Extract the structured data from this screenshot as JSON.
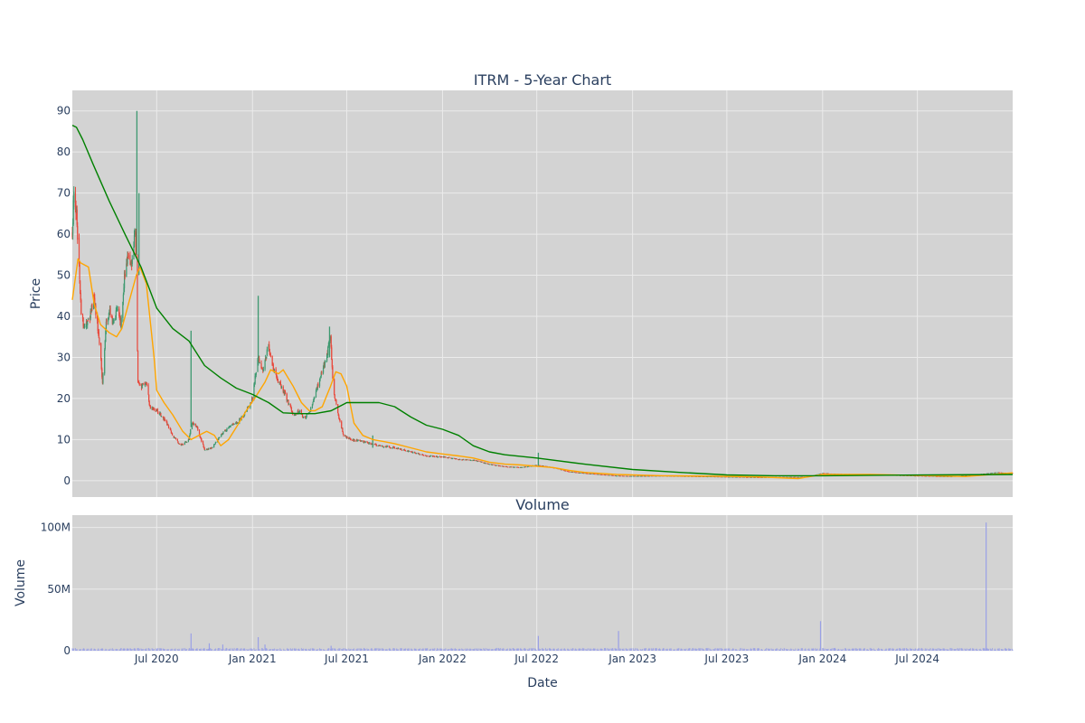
{
  "chart_data": [
    {
      "type": "candlestick",
      "title": "ITRM - 5-Year Chart",
      "ylabel": "Price",
      "ylim": [
        -4,
        95
      ],
      "yticks": [
        0,
        10,
        20,
        30,
        40,
        50,
        60,
        70,
        80,
        90
      ],
      "xlim": [
        "2020-01-21",
        "2024-12-31"
      ],
      "xticks": [
        {
          "date": "2020-07-01",
          "label": "Jul 2020"
        },
        {
          "date": "2021-01-01",
          "label": "Jan 2021"
        },
        {
          "date": "2021-07-01",
          "label": "Jul 2021"
        },
        {
          "date": "2022-01-01",
          "label": "Jan 2022"
        },
        {
          "date": "2022-07-01",
          "label": "Jul 2022"
        },
        {
          "date": "2023-01-01",
          "label": "Jan 2023"
        },
        {
          "date": "2023-07-01",
          "label": "Jul 2023"
        },
        {
          "date": "2024-01-01",
          "label": "Jan 2024"
        },
        {
          "date": "2024-07-01",
          "label": "Jul 2024"
        }
      ],
      "grid": true,
      "colors": {
        "up": "#3d9970",
        "down": "#e8473a",
        "ma_short": "#ffa500",
        "ma_long": "#008000",
        "plot_bg": "#d3d3d3",
        "grid": "#ebebeb"
      },
      "price_path": [
        [
          "2020-01-21",
          60
        ],
        [
          "2020-01-24",
          72
        ],
        [
          "2020-01-29",
          65
        ],
        [
          "2020-02-03",
          52
        ],
        [
          "2020-02-07",
          40
        ],
        [
          "2020-02-14",
          37
        ],
        [
          "2020-02-24",
          40
        ],
        [
          "2020-03-02",
          45
        ],
        [
          "2020-03-07",
          40
        ],
        [
          "2020-03-14",
          33
        ],
        [
          "2020-03-19",
          24
        ],
        [
          "2020-03-26",
          38
        ],
        [
          "2020-04-02",
          41
        ],
        [
          "2020-04-09",
          38
        ],
        [
          "2020-04-16",
          42
        ],
        [
          "2020-04-23",
          37
        ],
        [
          "2020-04-30",
          50
        ],
        [
          "2020-05-07",
          55
        ],
        [
          "2020-05-14",
          52
        ],
        [
          "2020-05-21",
          62
        ],
        [
          "2020-05-26",
          24
        ],
        [
          "2020-06-02",
          23
        ],
        [
          "2020-06-11",
          24
        ],
        [
          "2020-06-18",
          18
        ],
        [
          "2020-07-02",
          17
        ],
        [
          "2020-07-16",
          15
        ],
        [
          "2020-08-01",
          11
        ],
        [
          "2020-08-16",
          8.5
        ],
        [
          "2020-09-01",
          10
        ],
        [
          "2020-09-06",
          14
        ],
        [
          "2020-09-16",
          13
        ],
        [
          "2020-10-01",
          7.5
        ],
        [
          "2020-10-16",
          8
        ],
        [
          "2020-10-31",
          11
        ],
        [
          "2020-11-16",
          13
        ],
        [
          "2020-12-01",
          14
        ],
        [
          "2020-12-16",
          16
        ],
        [
          "2021-01-01",
          20
        ],
        [
          "2021-01-11",
          30
        ],
        [
          "2021-01-21",
          27
        ],
        [
          "2021-02-01",
          33
        ],
        [
          "2021-02-08",
          28
        ],
        [
          "2021-02-20",
          24
        ],
        [
          "2021-03-01",
          22
        ],
        [
          "2021-03-11",
          19
        ],
        [
          "2021-03-21",
          16
        ],
        [
          "2021-04-01",
          17
        ],
        [
          "2021-04-11",
          15
        ],
        [
          "2021-04-21",
          17
        ],
        [
          "2021-05-01",
          21
        ],
        [
          "2021-05-11",
          25
        ],
        [
          "2021-05-21",
          29
        ],
        [
          "2021-05-31",
          35
        ],
        [
          "2021-06-05",
          22
        ],
        [
          "2021-06-15",
          16
        ],
        [
          "2021-06-25",
          11
        ],
        [
          "2021-07-10",
          10
        ],
        [
          "2021-08-01",
          9.5
        ],
        [
          "2021-09-01",
          8.5
        ],
        [
          "2021-10-01",
          8
        ],
        [
          "2021-11-01",
          7
        ],
        [
          "2021-12-01",
          6
        ],
        [
          "2022-01-01",
          5.8
        ],
        [
          "2022-02-01",
          5.2
        ],
        [
          "2022-03-01",
          5
        ],
        [
          "2022-04-01",
          4
        ],
        [
          "2022-05-01",
          3.4
        ],
        [
          "2022-06-01",
          3.2
        ],
        [
          "2022-07-01",
          3.8
        ],
        [
          "2022-08-01",
          3.2
        ],
        [
          "2022-09-01",
          2.2
        ],
        [
          "2022-10-01",
          1.8
        ],
        [
          "2022-11-01",
          1.5
        ],
        [
          "2022-12-01",
          1.2
        ],
        [
          "2023-01-01",
          1.1
        ],
        [
          "2023-03-01",
          1.2
        ],
        [
          "2023-06-01",
          1.0
        ],
        [
          "2023-09-01",
          0.8
        ],
        [
          "2023-12-01",
          0.9
        ],
        [
          "2024-01-01",
          1.8
        ],
        [
          "2024-02-01",
          1.6
        ],
        [
          "2024-04-01",
          1.5
        ],
        [
          "2024-06-01",
          1.3
        ],
        [
          "2024-09-01",
          1.0
        ],
        [
          "2024-11-01",
          1.6
        ],
        [
          "2024-12-01",
          2.0
        ],
        [
          "2024-12-31",
          1.8
        ]
      ],
      "spikes": [
        {
          "date": "2020-05-24",
          "high": 90,
          "low": 55
        },
        {
          "date": "2020-05-28",
          "high": 70,
          "low": 50
        },
        {
          "date": "2020-09-05",
          "high": 36.5,
          "low": 13
        },
        {
          "date": "2021-01-12",
          "high": 45,
          "low": 28
        },
        {
          "date": "2021-05-29",
          "high": 37.5,
          "low": 30
        },
        {
          "date": "2021-08-20",
          "high": 11,
          "low": 8
        },
        {
          "date": "2022-07-04",
          "high": 6.8,
          "low": 3.5
        }
      ],
      "series": [
        {
          "name": "",
          "kind": "ma_short",
          "points": [
            [
              "2020-01-21",
              44
            ],
            [
              "2020-02-01",
              54
            ],
            [
              "2020-02-06",
              53
            ],
            [
              "2020-02-21",
              52
            ],
            [
              "2020-03-03",
              43
            ],
            [
              "2020-03-15",
              38
            ],
            [
              "2020-04-01",
              36
            ],
            [
              "2020-04-15",
              35
            ],
            [
              "2020-04-25",
              37
            ],
            [
              "2020-05-10",
              44
            ],
            [
              "2020-05-23",
              50
            ],
            [
              "2020-05-30",
              52
            ],
            [
              "2020-06-11",
              48
            ],
            [
              "2020-06-26",
              30
            ],
            [
              "2020-07-01",
              22
            ],
            [
              "2020-07-15",
              19
            ],
            [
              "2020-08-01",
              16
            ],
            [
              "2020-08-20",
              12
            ],
            [
              "2020-09-05",
              10
            ],
            [
              "2020-09-20",
              11
            ],
            [
              "2020-10-05",
              12
            ],
            [
              "2020-10-20",
              11
            ],
            [
              "2020-11-01",
              8.5
            ],
            [
              "2020-11-16",
              10
            ],
            [
              "2020-12-01",
              13
            ],
            [
              "2020-12-20",
              17
            ],
            [
              "2021-01-05",
              20
            ],
            [
              "2021-01-25",
              24
            ],
            [
              "2021-02-05",
              27
            ],
            [
              "2021-02-20",
              26
            ],
            [
              "2021-03-01",
              27
            ],
            [
              "2021-03-20",
              23
            ],
            [
              "2021-04-05",
              19
            ],
            [
              "2021-04-20",
              17
            ],
            [
              "2021-05-01",
              17
            ],
            [
              "2021-05-15",
              18
            ],
            [
              "2021-05-31",
              23
            ],
            [
              "2021-06-10",
              26.5
            ],
            [
              "2021-06-20",
              26
            ],
            [
              "2021-07-01",
              23
            ],
            [
              "2021-07-15",
              14
            ],
            [
              "2021-08-01",
              11
            ],
            [
              "2021-08-20",
              10
            ],
            [
              "2021-09-10",
              9.5
            ],
            [
              "2021-10-01",
              9
            ],
            [
              "2021-11-01",
              8
            ],
            [
              "2021-12-01",
              7
            ],
            [
              "2022-01-01",
              6.5
            ],
            [
              "2022-02-01",
              6
            ],
            [
              "2022-03-01",
              5.5
            ],
            [
              "2022-04-01",
              4.5
            ],
            [
              "2022-05-01",
              4
            ],
            [
              "2022-06-01",
              3.8
            ],
            [
              "2022-07-01",
              3.5
            ],
            [
              "2022-08-01",
              3.2
            ],
            [
              "2022-09-01",
              2.5
            ],
            [
              "2022-10-01",
              2
            ],
            [
              "2022-12-01",
              1.5
            ],
            [
              "2023-03-01",
              1.2
            ],
            [
              "2023-06-01",
              1.1
            ],
            [
              "2023-09-01",
              0.9
            ],
            [
              "2023-11-15",
              0.5
            ],
            [
              "2024-01-01",
              1.5
            ],
            [
              "2024-04-01",
              1.5
            ],
            [
              "2024-08-01",
              1.2
            ],
            [
              "2024-10-01",
              1.0
            ],
            [
              "2024-12-31",
              1.9
            ]
          ]
        },
        {
          "name": "",
          "kind": "ma_long",
          "points": [
            [
              "2020-01-21",
              86.5
            ],
            [
              "2020-01-29",
              86
            ],
            [
              "2020-02-10",
              83
            ],
            [
              "2020-03-01",
              77
            ],
            [
              "2020-04-01",
              68
            ],
            [
              "2020-05-01",
              60
            ],
            [
              "2020-06-01",
              52
            ],
            [
              "2020-07-01",
              42
            ],
            [
              "2020-08-01",
              37
            ],
            [
              "2020-09-01",
              34
            ],
            [
              "2020-10-01",
              28
            ],
            [
              "2020-11-01",
              25
            ],
            [
              "2020-12-01",
              22.5
            ],
            [
              "2021-01-01",
              21
            ],
            [
              "2021-02-01",
              19
            ],
            [
              "2021-03-01",
              16.5
            ],
            [
              "2021-04-01",
              16.3
            ],
            [
              "2021-05-01",
              16.3
            ],
            [
              "2021-06-01",
              17
            ],
            [
              "2021-07-01",
              19
            ],
            [
              "2021-08-01",
              19
            ],
            [
              "2021-09-01",
              19
            ],
            [
              "2021-10-01",
              18
            ],
            [
              "2021-11-01",
              15.5
            ],
            [
              "2021-12-01",
              13.5
            ],
            [
              "2022-01-01",
              12.5
            ],
            [
              "2022-02-01",
              11
            ],
            [
              "2022-03-01",
              8.5
            ],
            [
              "2022-04-01",
              7
            ],
            [
              "2022-05-01",
              6.3
            ],
            [
              "2022-07-01",
              5.5
            ],
            [
              "2022-10-01",
              4
            ],
            [
              "2023-01-01",
              2.7
            ],
            [
              "2023-04-01",
              2
            ],
            [
              "2023-07-01",
              1.4
            ],
            [
              "2023-10-01",
              1.2
            ],
            [
              "2024-01-01",
              1.2
            ],
            [
              "2024-04-01",
              1.3
            ],
            [
              "2024-08-01",
              1.4
            ],
            [
              "2024-12-31",
              1.5
            ]
          ]
        }
      ]
    },
    {
      "type": "bar",
      "title": "Volume",
      "ylabel": "Volume",
      "xlabel": "Date",
      "ylim": [
        0,
        110000000
      ],
      "yticks": [
        {
          "value": 0,
          "label": "0"
        },
        {
          "value": 50000000,
          "label": "50M"
        },
        {
          "value": 100000000,
          "label": "100M"
        }
      ],
      "grid": true,
      "colors": {
        "bar": "#9aa0e6",
        "plot_bg": "#d3d3d3",
        "grid": "#ebebeb"
      },
      "baseline": 1500000,
      "spikes": [
        [
          "2020-09-05",
          14000000
        ],
        [
          "2020-10-10",
          6000000
        ],
        [
          "2020-11-05",
          5000000
        ],
        [
          "2021-01-12",
          11000000
        ],
        [
          "2021-01-25",
          5000000
        ],
        [
          "2021-06-01",
          4000000
        ],
        [
          "2022-07-04",
          12000000
        ],
        [
          "2022-12-05",
          16000000
        ],
        [
          "2023-12-28",
          24000000
        ],
        [
          "2024-11-10",
          104000000
        ]
      ]
    }
  ]
}
